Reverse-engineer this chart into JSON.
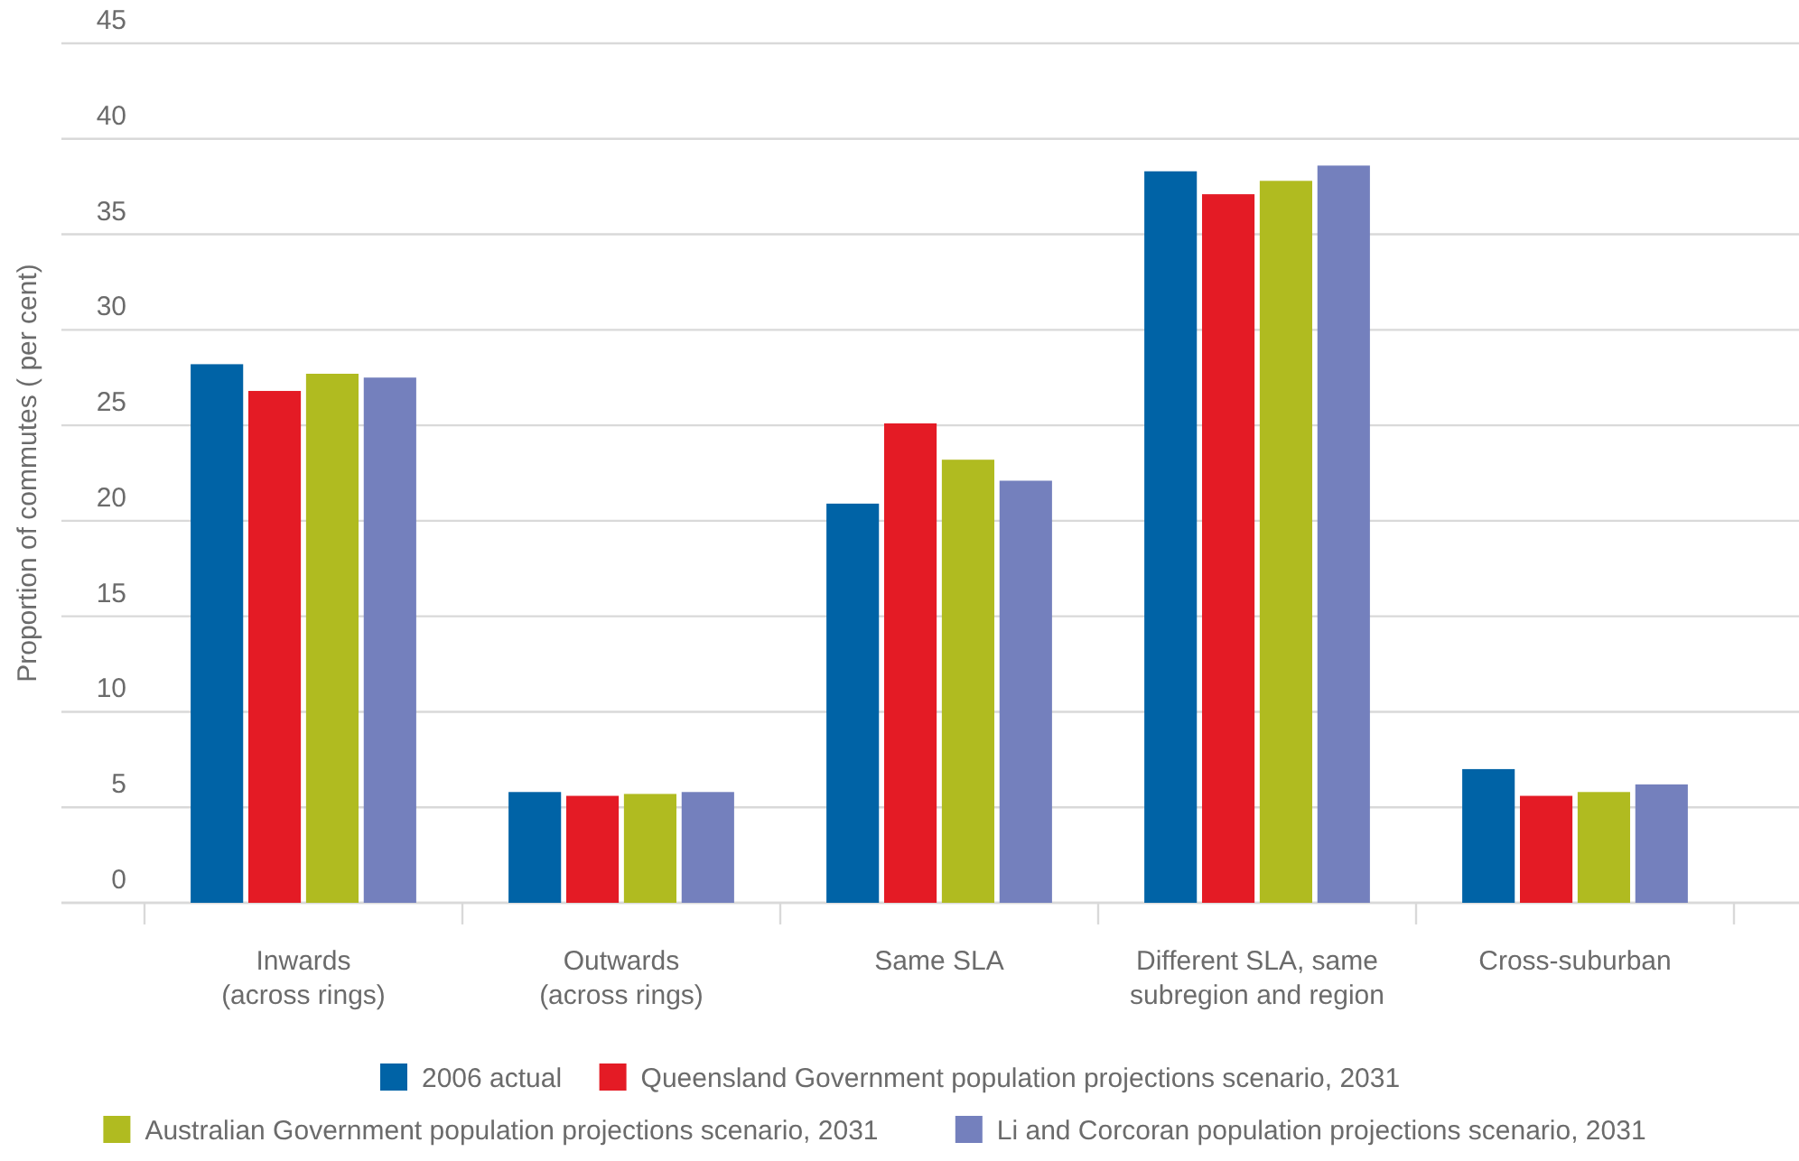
{
  "chart_data": {
    "type": "bar",
    "ylabel": "Proportion of commutes ( per cent)",
    "categories": [
      "Inwards\n(across rings)",
      "Outwards\n(across rings)",
      "Same SLA",
      "Different SLA, same\nsubregion and region",
      "Cross-suburban"
    ],
    "series": [
      {
        "name": "2006 actual",
        "color": "#0063a6",
        "values": [
          28.2,
          5.8,
          20.9,
          38.3,
          7.0
        ]
      },
      {
        "name": "Queensland Government population projections scenario, 2031",
        "color": "#e41b25",
        "values": [
          26.8,
          5.6,
          25.1,
          37.1,
          5.6
        ]
      },
      {
        "name": "Australian Government population projections scenario, 2031",
        "color": "#b0bb20",
        "values": [
          27.7,
          5.7,
          23.2,
          37.8,
          5.8
        ]
      },
      {
        "name": "Li and Corcoran population projections scenario, 2031",
        "color": "#7480bd",
        "values": [
          27.5,
          5.8,
          22.1,
          38.6,
          6.2
        ]
      }
    ],
    "ylim": [
      0,
      45
    ],
    "yticks": [
      0,
      5,
      10,
      15,
      20,
      25,
      30,
      35,
      40,
      45
    ],
    "grid": "y",
    "legend": "bottom"
  }
}
